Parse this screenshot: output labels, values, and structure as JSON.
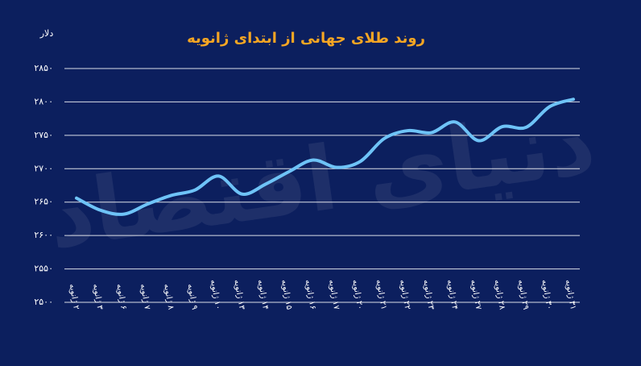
{
  "chart_data": {
    "type": "line",
    "title": "روند طلای جهانی از ابتدای ژانویه",
    "y_label": "دلار",
    "watermark": "دنیای اقتصاد",
    "categories": [
      "۲ ژانویه",
      "۳ ژانویه",
      "۶ ژانویه",
      "۷ ژانویه",
      "۸ ژانویه",
      "۹ ژانویه",
      "۱۰ ژانویه",
      "۱۳ ژانویه",
      "۱۴ ژانویه",
      "۱۵ ژانویه",
      "۱۶ ژانویه",
      "۱۷ ژانویه",
      "۲۰ ژانویه",
      "۲۱ ژانویه",
      "۲۲ ژانویه",
      "۲۳ ژانویه",
      "۲۴ ژانویه",
      "۲۷ ژانویه",
      "۲۸ ژانویه",
      "۲۹ ژانویه",
      "۳۰ ژانویه",
      "۳۱ ژانویه"
    ],
    "values": [
      2656,
      2638,
      2632,
      2647,
      2660,
      2668,
      2689,
      2662,
      2677,
      2696,
      2713,
      2702,
      2711,
      2745,
      2757,
      2754,
      2770,
      2742,
      2763,
      2762,
      2793,
      2804
    ],
    "color": "#6ec3f7",
    "ylim": [
      2500,
      2850
    ],
    "yticks": [
      {
        "value": 2500,
        "label": "۲۵۰۰"
      },
      {
        "value": 2550,
        "label": "۲۵۵۰"
      },
      {
        "value": 2600,
        "label": "۲۶۰۰"
      },
      {
        "value": 2650,
        "label": "۲۶۵۰"
      },
      {
        "value": 2700,
        "label": "۲۷۰۰"
      },
      {
        "value": 2750,
        "label": "۲۷۵۰"
      },
      {
        "value": 2800,
        "label": "۲۸۰۰"
      },
      {
        "value": 2850,
        "label": "۲۸۵۰"
      }
    ],
    "grid": true
  }
}
